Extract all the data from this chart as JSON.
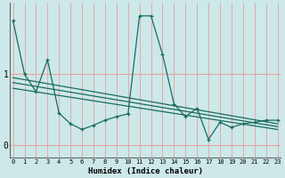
{
  "xlabel": "Humidex (Indice chaleur)",
  "bg_color": "#cce8e8",
  "grid_color_v": "#e8a0a0",
  "grid_color_h": "#e8a0a0",
  "line_color": "#1a6b60",
  "x_values": [
    0,
    1,
    2,
    3,
    4,
    5,
    6,
    7,
    8,
    9,
    10,
    11,
    12,
    13,
    14,
    15,
    16,
    17,
    18,
    19,
    20,
    21,
    22,
    23
  ],
  "y_main": [
    1.75,
    1.0,
    0.75,
    1.2,
    0.45,
    0.3,
    0.22,
    0.28,
    0.35,
    0.4,
    0.44,
    1.82,
    1.82,
    1.28,
    0.58,
    0.4,
    0.52,
    0.08,
    0.32,
    0.25,
    0.3,
    0.32,
    0.35,
    0.35
  ],
  "ylim": [
    -0.18,
    2.0
  ],
  "xlim": [
    -0.3,
    23.3
  ],
  "yticks": [
    0,
    1
  ],
  "xticks": [
    0,
    1,
    2,
    3,
    4,
    5,
    6,
    7,
    8,
    9,
    10,
    11,
    12,
    13,
    14,
    15,
    16,
    17,
    18,
    19,
    20,
    21,
    22,
    23
  ],
  "trend1": [
    0.95,
    0.3
  ],
  "trend2": [
    0.88,
    0.26
  ],
  "trend3": [
    0.8,
    0.22
  ]
}
